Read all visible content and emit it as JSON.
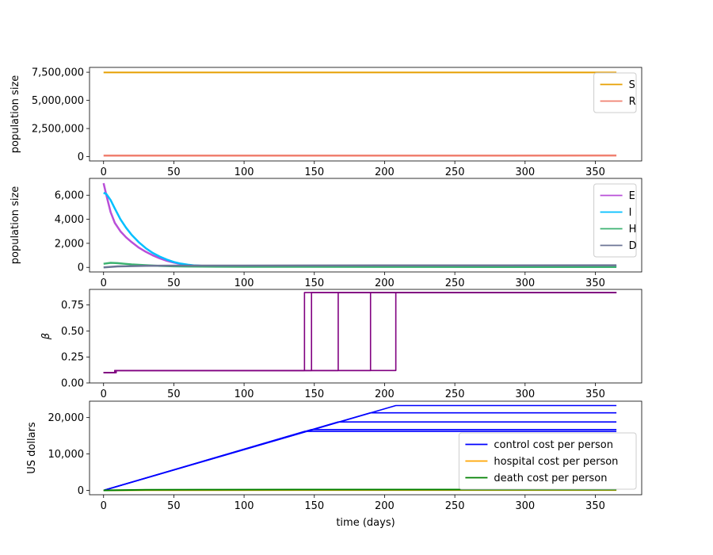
{
  "chart_data": [
    {
      "type": "line",
      "ylabel": "population size",
      "xlim": [
        -10,
        383
      ],
      "ylim": [
        -380000,
        7930000
      ],
      "xticks": [
        "0",
        "50",
        "100",
        "150",
        "200",
        "250",
        "300",
        "350"
      ],
      "yticks": [
        {
          "value": 0,
          "label": "0"
        },
        {
          "value": 2500000,
          "label": "2,500,000"
        },
        {
          "value": 5000000,
          "label": "5,000,000"
        },
        {
          "value": 7500000,
          "label": "7,500,000"
        }
      ],
      "legend_position": "upper-right",
      "series": [
        {
          "name": "S",
          "color": "#e69f00",
          "width": 2,
          "points": [
            [
              0,
              7480000
            ],
            [
              365,
              7480000
            ]
          ]
        },
        {
          "name": "R",
          "color": "#f08070",
          "width": 2.5,
          "points": [
            [
              0,
              95000
            ],
            [
              365,
              100000
            ]
          ]
        }
      ]
    },
    {
      "type": "line",
      "ylabel": "population size",
      "xlim": [
        -10,
        383
      ],
      "ylim": [
        -380,
        7400
      ],
      "xticks": [
        "0",
        "50",
        "100",
        "150",
        "200",
        "250",
        "300",
        "350"
      ],
      "yticks": [
        {
          "value": 0,
          "label": "0"
        },
        {
          "value": 2000,
          "label": "2,000"
        },
        {
          "value": 4000,
          "label": "4,000"
        },
        {
          "value": 6000,
          "label": "6,000"
        }
      ],
      "legend_position": "upper-right",
      "series": [
        {
          "name": "E",
          "color": "#b94fd8",
          "width": 2.5,
          "points": [
            [
              0,
              7000
            ],
            [
              2,
              6000
            ],
            [
              5,
              4600
            ],
            [
              8,
              3700
            ],
            [
              12,
              3000
            ],
            [
              16,
              2500
            ],
            [
              20,
              2100
            ],
            [
              25,
              1650
            ],
            [
              30,
              1300
            ],
            [
              35,
              1000
            ],
            [
              40,
              750
            ],
            [
              45,
              550
            ],
            [
              50,
              400
            ],
            [
              55,
              280
            ],
            [
              60,
              200
            ],
            [
              65,
              150
            ],
            [
              70,
              120
            ],
            [
              100,
              110
            ],
            [
              150,
              110
            ],
            [
              200,
              110
            ],
            [
              250,
              110
            ],
            [
              300,
              110
            ],
            [
              365,
              110
            ]
          ]
        },
        {
          "name": "I",
          "color": "#00bfff",
          "width": 2.5,
          "points": [
            [
              0,
              6200
            ],
            [
              2,
              6100
            ],
            [
              5,
              5600
            ],
            [
              8,
              4900
            ],
            [
              12,
              4000
            ],
            [
              16,
              3300
            ],
            [
              20,
              2700
            ],
            [
              25,
              2100
            ],
            [
              30,
              1600
            ],
            [
              35,
              1200
            ],
            [
              40,
              900
            ],
            [
              45,
              650
            ],
            [
              50,
              450
            ],
            [
              55,
              310
            ],
            [
              60,
              220
            ],
            [
              65,
              160
            ],
            [
              70,
              130
            ],
            [
              100,
              110
            ],
            [
              150,
              110
            ],
            [
              200,
              110
            ],
            [
              250,
              110
            ],
            [
              300,
              110
            ],
            [
              365,
              110
            ]
          ]
        },
        {
          "name": "H",
          "color": "#3cb371",
          "width": 2.5,
          "points": [
            [
              0,
              300
            ],
            [
              5,
              380
            ],
            [
              10,
              350
            ],
            [
              15,
              300
            ],
            [
              20,
              250
            ],
            [
              30,
              180
            ],
            [
              40,
              120
            ],
            [
              50,
              90
            ],
            [
              60,
              70
            ],
            [
              80,
              60
            ],
            [
              100,
              50
            ],
            [
              200,
              40
            ],
            [
              365,
              30
            ]
          ]
        },
        {
          "name": "D",
          "color": "#6b7595",
          "width": 2.5,
          "points": [
            [
              0,
              0
            ],
            [
              5,
              40
            ],
            [
              10,
              80
            ],
            [
              20,
              110
            ],
            [
              30,
              130
            ],
            [
              40,
              140
            ],
            [
              60,
              145
            ],
            [
              100,
              150
            ],
            [
              200,
              160
            ],
            [
              365,
              170
            ]
          ]
        }
      ]
    },
    {
      "type": "line",
      "ylabel": "β",
      "xlim": [
        -10,
        383
      ],
      "ylim": [
        0,
        0.9
      ],
      "xticks": [
        "0",
        "50",
        "100",
        "150",
        "200",
        "250",
        "300",
        "350"
      ],
      "yticks": [
        {
          "value": 0,
          "label": "0.00"
        },
        {
          "value": 0.25,
          "label": "0.25"
        },
        {
          "value": 0.5,
          "label": "0.50"
        },
        {
          "value": 0.75,
          "label": "0.75"
        }
      ],
      "series": [
        {
          "name": "",
          "color": "#800080",
          "width": 1.6,
          "points": [
            [
              0,
              0.1
            ],
            [
              8,
              0.1
            ],
            [
              8,
              0.12
            ],
            [
              143,
              0.12
            ],
            [
              143,
              0.87
            ],
            [
              365,
              0.87
            ]
          ]
        },
        {
          "name": "",
          "color": "#800080",
          "width": 1.6,
          "points": [
            [
              0,
              0.1
            ],
            [
              9,
              0.1
            ],
            [
              9,
              0.12
            ],
            [
              148,
              0.12
            ],
            [
              148,
              0.87
            ],
            [
              365,
              0.87
            ]
          ]
        },
        {
          "name": "",
          "color": "#800080",
          "width": 1.6,
          "points": [
            [
              0,
              0.1
            ],
            [
              8,
              0.1
            ],
            [
              8,
              0.12
            ],
            [
              167,
              0.12
            ],
            [
              167,
              0.87
            ],
            [
              365,
              0.87
            ]
          ]
        },
        {
          "name": "",
          "color": "#800080",
          "width": 1.6,
          "points": [
            [
              0,
              0.1
            ],
            [
              9,
              0.1
            ],
            [
              9,
              0.12
            ],
            [
              190,
              0.12
            ],
            [
              190,
              0.87
            ],
            [
              365,
              0.87
            ]
          ]
        },
        {
          "name": "",
          "color": "#800080",
          "width": 1.6,
          "points": [
            [
              0,
              0.1
            ],
            [
              8,
              0.1
            ],
            [
              8,
              0.12
            ],
            [
              208,
              0.12
            ],
            [
              208,
              0.87
            ],
            [
              365,
              0.87
            ]
          ]
        }
      ]
    },
    {
      "type": "line",
      "xlabel": "time (days)",
      "ylabel": "US dollars",
      "xlim": [
        -10,
        383
      ],
      "ylim": [
        -1200,
        24500
      ],
      "xticks": [
        "0",
        "50",
        "100",
        "150",
        "200",
        "250",
        "300",
        "350"
      ],
      "yticks": [
        {
          "value": 0,
          "label": "0"
        },
        {
          "value": 10000,
          "label": "10,000"
        },
        {
          "value": 20000,
          "label": "20,000"
        }
      ],
      "legend_position": "lower-right",
      "series": [
        {
          "name": "control cost per person",
          "color": "#0000ff",
          "width": 1.6,
          "points": [
            [
              0,
              0
            ],
            [
              143,
              16200
            ],
            [
              365,
              16200
            ]
          ]
        },
        {
          "name": "",
          "color": "#0000ff",
          "width": 1.6,
          "points": [
            [
              0,
              0
            ],
            [
              148,
              16700
            ],
            [
              365,
              16700
            ]
          ]
        },
        {
          "name": "",
          "color": "#0000ff",
          "width": 1.6,
          "points": [
            [
              0,
              0
            ],
            [
              167,
              18800
            ],
            [
              365,
              18800
            ]
          ]
        },
        {
          "name": "",
          "color": "#0000ff",
          "width": 1.6,
          "points": [
            [
              0,
              0
            ],
            [
              190,
              21300
            ],
            [
              365,
              21300
            ]
          ]
        },
        {
          "name": "",
          "color": "#0000ff",
          "width": 1.6,
          "points": [
            [
              0,
              0
            ],
            [
              208,
              23300
            ],
            [
              365,
              23300
            ]
          ]
        },
        {
          "name": "hospital cost per person",
          "color": "#ffa500",
          "width": 2,
          "points": [
            [
              0,
              0
            ],
            [
              30,
              60
            ],
            [
              365,
              80
            ]
          ]
        },
        {
          "name": "death cost per person",
          "color": "#008000",
          "width": 2,
          "points": [
            [
              0,
              0
            ],
            [
              30,
              150
            ],
            [
              80,
              200
            ],
            [
              365,
              220
            ]
          ]
        }
      ]
    }
  ]
}
